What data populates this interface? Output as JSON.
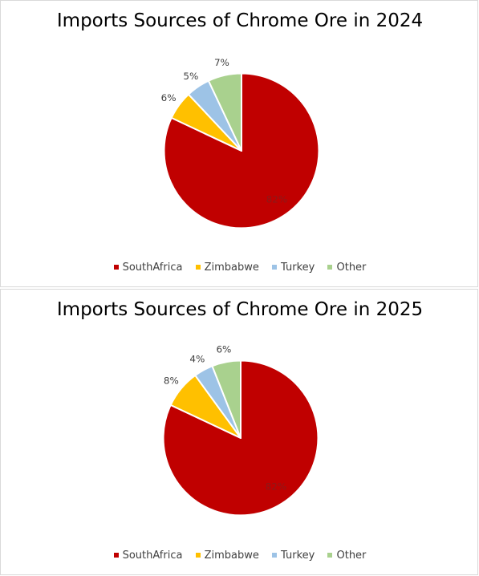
{
  "chart_data": [
    {
      "type": "pie",
      "title": "Imports Sources of Chrome Ore in 2024",
      "categories": [
        "SouthAfrica",
        "Zimbabwe",
        "Turkey",
        "Other"
      ],
      "values": [
        82,
        6,
        5,
        7
      ],
      "labels": [
        "82%",
        "6%",
        "5%",
        "7%"
      ],
      "colors": [
        "#C00000",
        "#FFC000",
        "#9DC3E6",
        "#A9D18E"
      ],
      "legend": "bottom"
    },
    {
      "type": "pie",
      "title": "Imports Sources of Chrome Ore in 2025",
      "categories": [
        "SouthAfrica",
        "Zimbabwe",
        "Turkey",
        "Other"
      ],
      "values": [
        82,
        8,
        4,
        6
      ],
      "labels": [
        "82%",
        "8%",
        "4%",
        "6%"
      ],
      "colors": [
        "#C00000",
        "#FFC000",
        "#9DC3E6",
        "#A9D18E"
      ],
      "legend": "bottom"
    }
  ]
}
